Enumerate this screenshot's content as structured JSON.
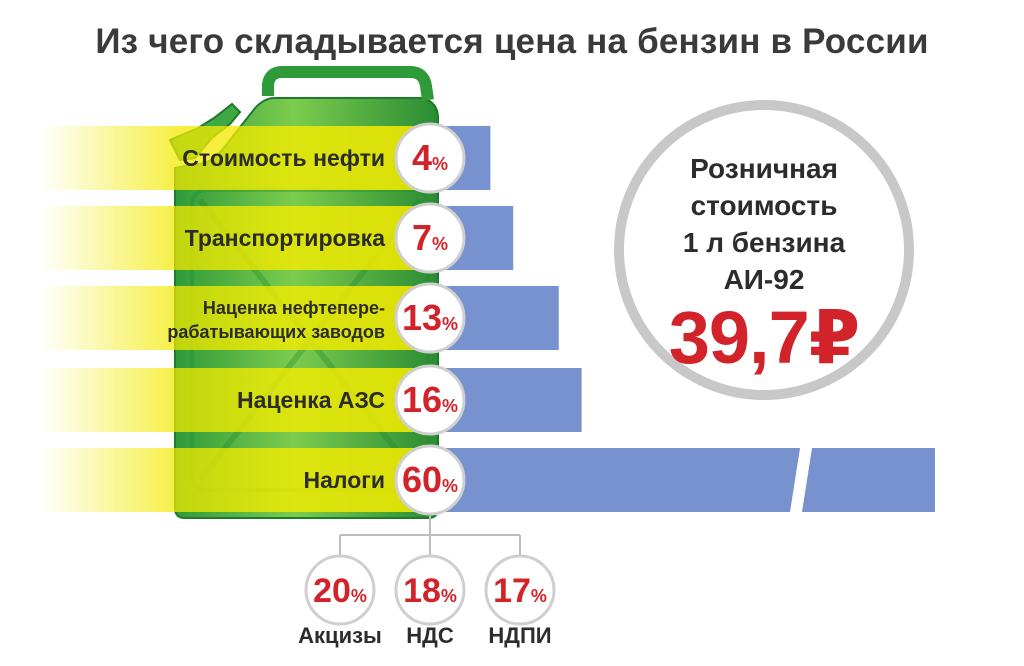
{
  "title": "Из чего складывается цена на бензин в России",
  "retail": {
    "label": "Розничная\nстоимость\n1 л бензина\nАИ-92",
    "price": "39,7₽"
  },
  "colors": {
    "bar": "#7892cf",
    "accent": "#d2232a",
    "yellow": "#f2ea00",
    "canister_green": "#3aa640",
    "circle_border": "#c8c8c8"
  },
  "chart_data": {
    "type": "bar",
    "orientation": "horizontal",
    "title": "Из чего складывается цена на бензин в России",
    "categories": [
      [
        "Стоимость нефти"
      ],
      [
        "Транспортировка"
      ],
      [
        "Наценка нефтепере-",
        "рабатывающих заводов"
      ],
      [
        "Наценка АЗС"
      ],
      [
        "Налоги"
      ]
    ],
    "values": [
      4,
      7,
      13,
      16,
      60
    ],
    "unit": "%",
    "axis_break_on_last_bar": true,
    "breakdown": {
      "parent": "Налоги",
      "items": [
        {
          "label": "Акцизы",
          "value": 20
        },
        {
          "label": "НДС",
          "value": 18
        },
        {
          "label": "НДПИ",
          "value": 17
        }
      ]
    }
  }
}
